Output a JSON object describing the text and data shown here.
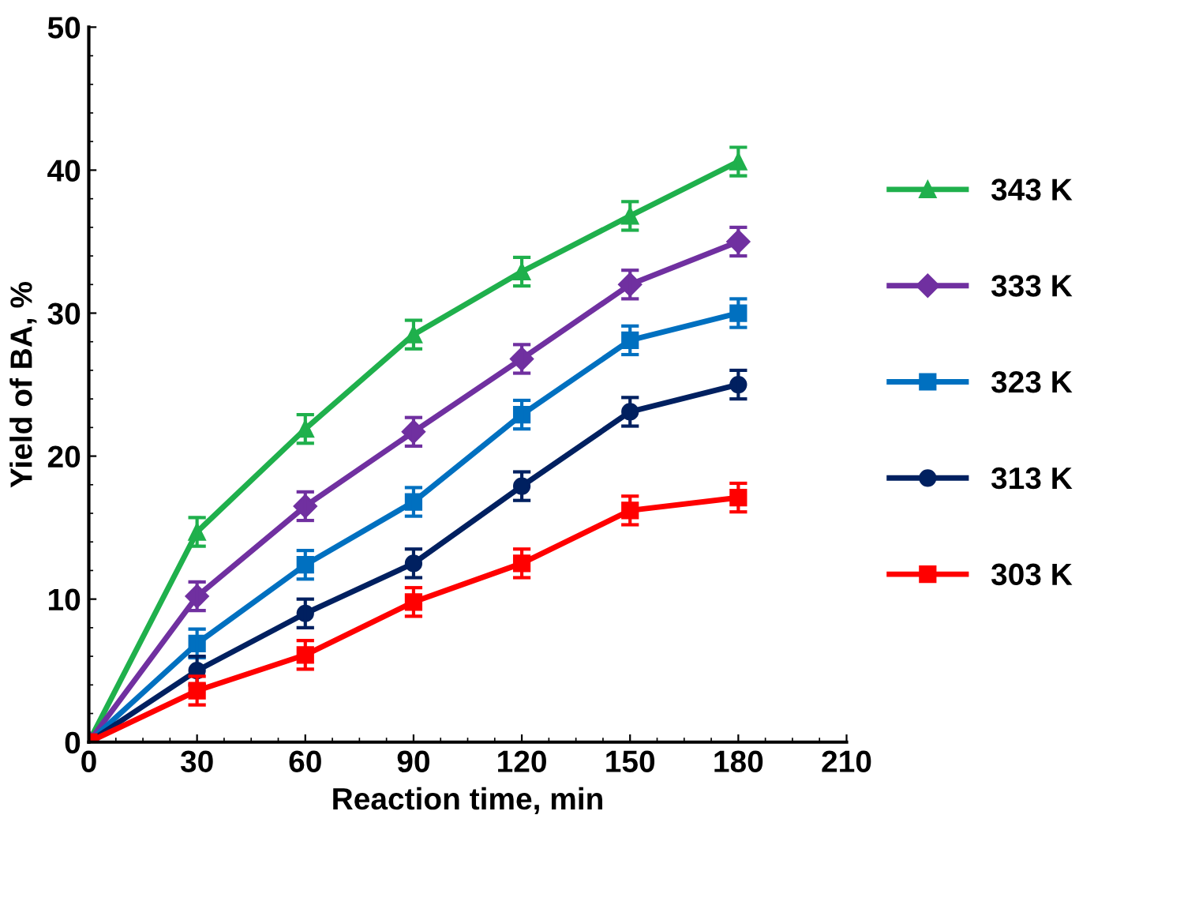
{
  "chart_data": {
    "type": "line",
    "xlabel": "Reaction time, min",
    "ylabel": "Yield of BA, %",
    "x": [
      0,
      30,
      60,
      90,
      120,
      150,
      180
    ],
    "xlim": [
      0,
      210
    ],
    "xticks": [
      0,
      30,
      60,
      90,
      120,
      150,
      180,
      210
    ],
    "ylim": [
      0,
      50
    ],
    "yticks": [
      0,
      10,
      20,
      30,
      40,
      50
    ],
    "grid": false,
    "legend": "right",
    "series": [
      {
        "name": "343 K",
        "color": "#1fb04c",
        "marker": "triangle",
        "values": [
          0,
          14.7,
          21.9,
          28.5,
          32.9,
          36.8,
          40.6
        ],
        "errors": [
          0.2,
          1.0,
          1.0,
          1.0,
          1.0,
          1.0,
          1.0
        ]
      },
      {
        "name": "333 K",
        "color": "#7030a0",
        "marker": "diamond",
        "values": [
          0,
          10.2,
          16.5,
          21.7,
          26.8,
          32.0,
          35.0
        ],
        "errors": [
          0.2,
          1.0,
          1.0,
          1.0,
          1.0,
          1.0,
          1.0
        ]
      },
      {
        "name": "323 K",
        "color": "#0070c0",
        "marker": "square",
        "values": [
          0,
          6.9,
          12.4,
          16.8,
          22.9,
          28.1,
          30.0
        ],
        "errors": [
          0.2,
          1.0,
          1.0,
          1.0,
          1.0,
          1.0,
          1.0
        ]
      },
      {
        "name": "313 K",
        "color": "#002060",
        "marker": "circle",
        "values": [
          0,
          5.0,
          9.0,
          12.5,
          17.9,
          23.1,
          25.0
        ],
        "errors": [
          0.2,
          1.0,
          1.0,
          1.0,
          1.0,
          1.0,
          1.0
        ]
      },
      {
        "name": "303 K",
        "color": "#ff0000",
        "marker": "square",
        "values": [
          0,
          3.6,
          6.1,
          9.8,
          12.5,
          16.2,
          17.1
        ],
        "errors": [
          0.2,
          1.0,
          1.0,
          1.0,
          1.0,
          1.0,
          1.0
        ]
      }
    ]
  }
}
